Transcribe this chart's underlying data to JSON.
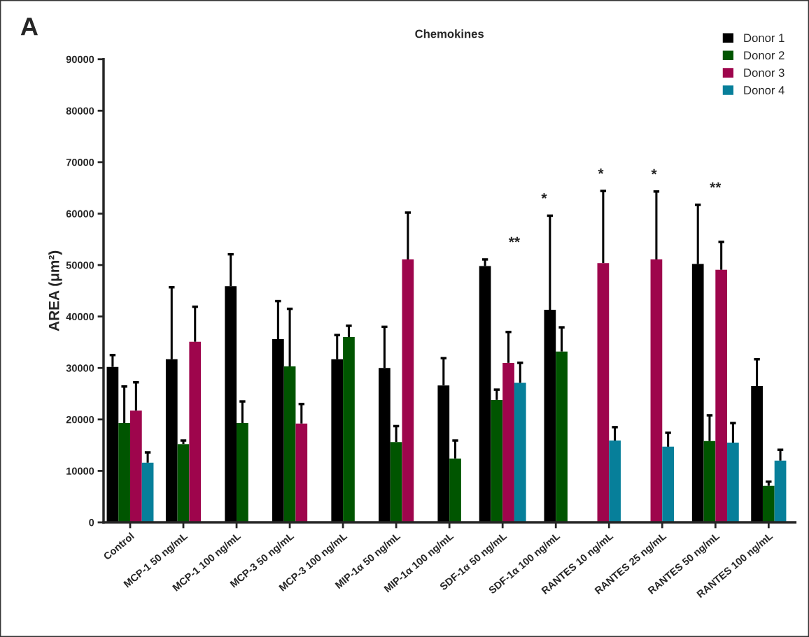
{
  "chart_data": {
    "type": "bar",
    "title": "Chemokines",
    "ylabel": "AREA (μm²)",
    "categories": [
      "Control",
      "MCP-1 50 ng/mL",
      "MCP-1 100 ng/mL",
      "MCP-3 50 ng/mL",
      "MCP-3 100 ng/mL",
      "MIP-1α 50 ng/mL",
      "MIP-1α 100 ng/mL",
      "SDF-1α 50 ng/mL",
      "SDF-1α 100 ng/mL",
      "RANTES 10 ng/mL",
      "RANTES 25 ng/mL",
      "RANTES 50 ng/mL",
      "RANTES 100 ng/mL"
    ],
    "series": [
      {
        "name": "Donor 1",
        "color": "#000000",
        "values": [
          30200,
          31700,
          45900,
          35600,
          31700,
          30000,
          26600,
          49800,
          41300,
          null,
          null,
          50200,
          26500
        ],
        "errors": [
          [
            30200,
            32500
          ],
          [
            31700,
            45700
          ],
          [
            45900,
            52100
          ],
          [
            35600,
            43000
          ],
          [
            31700,
            36400
          ],
          [
            30000,
            38000
          ],
          [
            26600,
            31900
          ],
          [
            49800,
            51100
          ],
          [
            41300,
            59600
          ],
          null,
          null,
          [
            50200,
            61700
          ],
          [
            26500,
            31700
          ]
        ]
      },
      {
        "name": "Donor 2",
        "color": "#005500",
        "values": [
          19300,
          15200,
          19300,
          30300,
          36000,
          15600,
          12400,
          23800,
          33200,
          null,
          null,
          15800,
          7100
        ],
        "errors": [
          [
            19300,
            26400
          ],
          [
            15200,
            15900
          ],
          [
            19300,
            23500
          ],
          [
            30300,
            41500
          ],
          [
            36000,
            38200
          ],
          [
            15600,
            18700
          ],
          [
            12400,
            15900
          ],
          [
            23800,
            25800
          ],
          [
            33200,
            37900
          ],
          null,
          null,
          [
            15800,
            20800
          ],
          [
            7100,
            7900
          ]
        ]
      },
      {
        "name": "Donor 3",
        "color": "#9e054c",
        "values": [
          21700,
          35100,
          null,
          19200,
          null,
          51100,
          null,
          31000,
          null,
          50400,
          51100,
          49100,
          null
        ],
        "errors": [
          [
            21700,
            27200
          ],
          [
            35100,
            41900
          ],
          null,
          [
            19200,
            23000
          ],
          null,
          [
            51100,
            60200
          ],
          null,
          [
            31000,
            37000
          ],
          null,
          [
            50400,
            64400
          ],
          [
            51100,
            64300
          ],
          [
            49100,
            54500
          ],
          null
        ]
      },
      {
        "name": "Donor 4",
        "color": "#077f9a",
        "values": [
          11600,
          null,
          null,
          null,
          null,
          null,
          null,
          27100,
          null,
          15900,
          14700,
          15500,
          12000
        ],
        "errors": [
          [
            11600,
            13600
          ],
          null,
          null,
          null,
          null,
          null,
          null,
          [
            27100,
            31000
          ],
          null,
          [
            15900,
            18500
          ],
          [
            14700,
            17400
          ],
          [
            15500,
            19300
          ],
          [
            12000,
            14100
          ]
        ]
      }
    ],
    "ylim": [
      0,
      90000
    ],
    "yticks": [
      0,
      10000,
      20000,
      30000,
      40000,
      50000,
      60000,
      70000,
      80000,
      90000
    ],
    "grid": false,
    "legend": "top right",
    "annotations": [
      "A",
      "**",
      "*",
      "*",
      "*",
      "**"
    ]
  }
}
